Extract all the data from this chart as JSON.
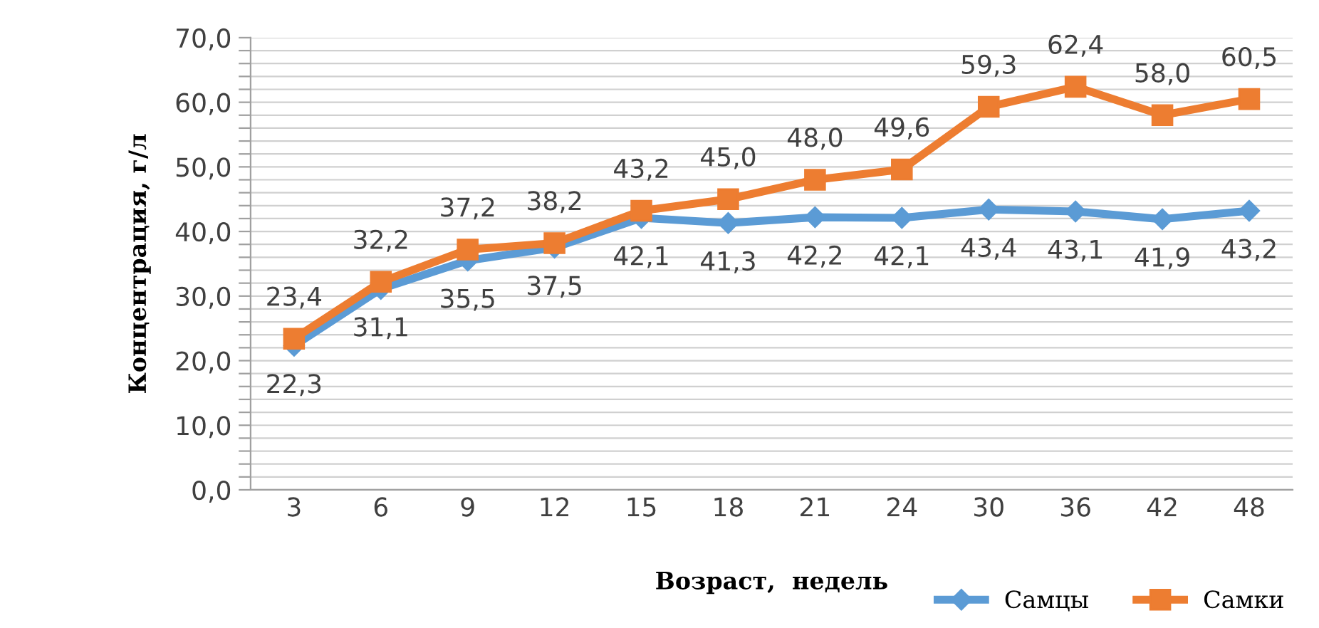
{
  "chart_data": {
    "type": "line",
    "xlabel": "Возраст,  недель",
    "ylabel": "Концентрация, г/л",
    "categories": [
      "3",
      "6",
      "9",
      "12",
      "15",
      "18",
      "21",
      "24",
      "30",
      "36",
      "42",
      "48"
    ],
    "series": [
      {
        "name": "Самцы",
        "color": "#5b9bd5",
        "marker": "diamond",
        "values": [
          22.3,
          31.1,
          35.5,
          37.5,
          42.1,
          41.3,
          42.2,
          42.1,
          43.4,
          43.1,
          41.9,
          43.2
        ],
        "value_labels": [
          "22,3",
          "31,1",
          "35,5",
          "37,5",
          "42,1",
          "41,3",
          "42,2",
          "42,1",
          "43,4",
          "43,1",
          "41,9",
          "43,2"
        ]
      },
      {
        "name": "Самки",
        "color": "#ed7d31",
        "marker": "square",
        "values": [
          23.4,
          32.2,
          37.2,
          38.2,
          43.2,
          45.0,
          48.0,
          49.6,
          59.3,
          62.4,
          58.0,
          60.5
        ],
        "value_labels": [
          "23,4",
          "32,2",
          "37,2",
          "38,2",
          "43,2",
          "45,0",
          "48,0",
          "49,6",
          "59,3",
          "62,4",
          "58,0",
          "60,5"
        ]
      }
    ],
    "ylim": [
      0,
      70
    ],
    "yticks": [
      {
        "value": 0,
        "label": "0,0"
      },
      {
        "value": 2,
        "label": null
      },
      {
        "value": 4,
        "label": null
      },
      {
        "value": 6,
        "label": null
      },
      {
        "value": 8,
        "label": null
      },
      {
        "value": 10,
        "label": "10,0"
      },
      {
        "value": 12,
        "label": null
      },
      {
        "value": 14,
        "label": null
      },
      {
        "value": 16,
        "label": null
      },
      {
        "value": 18,
        "label": null
      },
      {
        "value": 20,
        "label": "20,0"
      },
      {
        "value": 22,
        "label": null
      },
      {
        "value": 24,
        "label": null
      },
      {
        "value": 26,
        "label": null
      },
      {
        "value": 28,
        "label": null
      },
      {
        "value": 30,
        "label": "30,0"
      },
      {
        "value": 32,
        "label": null
      },
      {
        "value": 34,
        "label": null
      },
      {
        "value": 36,
        "label": null
      },
      {
        "value": 38,
        "label": null
      },
      {
        "value": 40,
        "label": "40,0"
      },
      {
        "value": 42,
        "label": null
      },
      {
        "value": 44,
        "label": null
      },
      {
        "value": 46,
        "label": null
      },
      {
        "value": 48,
        "label": null
      },
      {
        "value": 50,
        "label": "50,0"
      },
      {
        "value": 52,
        "label": null
      },
      {
        "value": 54,
        "label": null
      },
      {
        "value": 56,
        "label": null
      },
      {
        "value": 58,
        "label": null
      },
      {
        "value": 60,
        "label": "60,0"
      },
      {
        "value": 62,
        "label": null
      },
      {
        "value": 64,
        "label": null
      },
      {
        "value": 66,
        "label": null
      },
      {
        "value": 68,
        "label": null
      },
      {
        "value": 70,
        "label": "70,0"
      }
    ],
    "grid": "y",
    "legend": "bottom right",
    "line_style": "solid"
  }
}
